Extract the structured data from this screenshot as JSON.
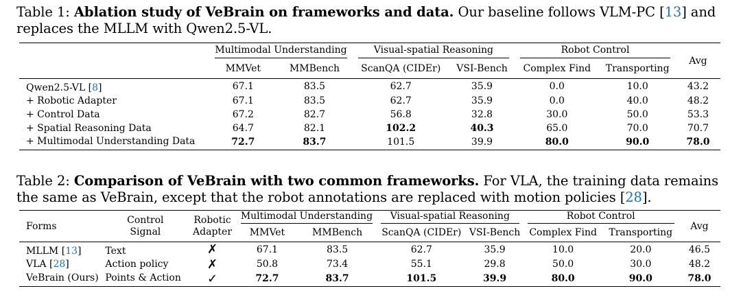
{
  "table1": {
    "caption_label": "Table 1:",
    "caption_title": "Ablation study of VeBrain on frameworks and data.",
    "caption_text_a": "Our baseline follows VLM-PC [",
    "caption_ref": "13",
    "caption_text_b": "] and replaces the MLLM with Qwen2.5-VL.",
    "groups": {
      "multimodal": "Multimodal Understanding",
      "spatial": "Visual-spatial Reasoning",
      "robot": "Robot Control",
      "avg": "Avg"
    },
    "cols": [
      "MMVet",
      "MMBench",
      "ScanQA (CIDEr)",
      "VSI-Bench",
      "Complex Find",
      "Transporting"
    ],
    "rows": [
      {
        "label": "Qwen2.5-VL [",
        "ref": "8",
        "label_end": "]",
        "values": [
          "67.1",
          "83.5",
          "62.7",
          "35.9",
          "0.0",
          "10.0",
          "43.2"
        ]
      },
      {
        "label": "+ Robotic Adapter",
        "values": [
          "67.1",
          "83.5",
          "62.7",
          "35.9",
          "0.0",
          "40.0",
          "48.2"
        ]
      },
      {
        "label": "+ Control Data",
        "values": [
          "67.2",
          "82.7",
          "56.8",
          "32.8",
          "30.0",
          "50.0",
          "53.3"
        ]
      },
      {
        "label": "+ Spatial Reasoning Data",
        "values": [
          "64.7",
          "82.1",
          "102.2",
          "40.3",
          "65.0",
          "70.0",
          "70.7"
        ]
      },
      {
        "label": "+ Multimodal Understanding Data",
        "values": [
          "72.7",
          "83.7",
          "101.5",
          "39.9",
          "80.0",
          "90.0",
          "78.0"
        ]
      }
    ]
  },
  "table2": {
    "caption_label": "Table 2:",
    "caption_title": "Comparison of VeBrain with two common frameworks.",
    "caption_text_a": "For VLA, the training data remains the same as VeBrain, except that the robot annotations are replaced with motion policies [",
    "caption_ref": "28",
    "caption_text_b": "].",
    "headers": {
      "forms": "Forms",
      "control_1": "Control",
      "control_2": "Signal",
      "adapter_1": "Robotic",
      "adapter_2": "Adapter",
      "multimodal": "Multimodal Understanding",
      "spatial": "Visual-spatial Reasoning",
      "robot": "Robot Control",
      "avg": "Avg"
    },
    "cols": [
      "MMVet",
      "MMBench",
      "ScanQA (CIDEr)",
      "VSI-Bench",
      "Complex Find",
      "Transporting"
    ],
    "rows": [
      {
        "form": "MLLM [",
        "ref": "13",
        "form_end": "]",
        "signal": "Text",
        "adapter": "✗",
        "values": [
          "67.1",
          "83.5",
          "62.7",
          "35.9",
          "10.0",
          "20.0",
          "46.5"
        ]
      },
      {
        "form": "VLA [",
        "ref": "28",
        "form_end": "]",
        "signal": "Action policy",
        "adapter": "✗",
        "values": [
          "50.8",
          "73.4",
          "55.1",
          "29.8",
          "50.0",
          "30.0",
          "48.2"
        ]
      },
      {
        "form": "VeBrain (Ours)",
        "signal": "Points & Action",
        "adapter": "✓",
        "values": [
          "72.7",
          "83.7",
          "101.5",
          "39.9",
          "80.0",
          "90.0",
          "78.0"
        ]
      }
    ]
  }
}
